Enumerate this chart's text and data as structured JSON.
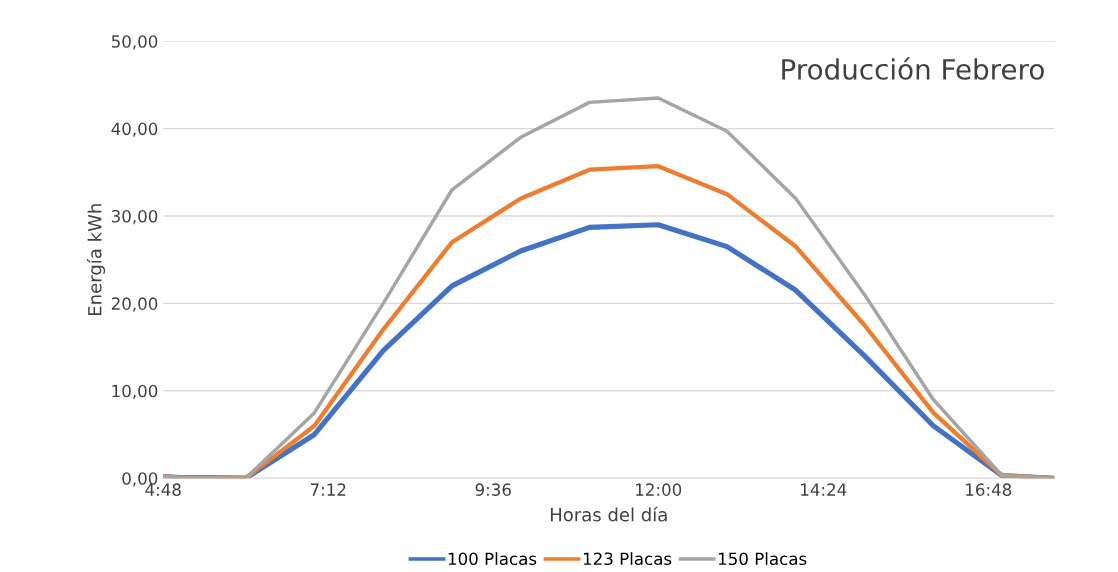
{
  "chart_data": {
    "type": "line",
    "title": "Producción Febrero",
    "xlabel": "Horas del día",
    "ylabel": "Energía kWh",
    "x": [
      4.8,
      5,
      6,
      7,
      8,
      9,
      10,
      11,
      12,
      13,
      14,
      15,
      16,
      17,
      17.76
    ],
    "series": [
      {
        "name": "100 Placas",
        "color": "#4472c4",
        "values": [
          0.2,
          0.1,
          0,
          5,
          14.6,
          22,
          26,
          28.7,
          29,
          26.5,
          21.5,
          14,
          6,
          0.3,
          0
        ]
      },
      {
        "name": "123 Placas",
        "color": "#ed7d31",
        "values": [
          0.2,
          0.1,
          0,
          6,
          17,
          27,
          32,
          35.3,
          35.7,
          32.5,
          26.5,
          17.5,
          7.5,
          0.3,
          0
        ]
      },
      {
        "name": "150 Placas",
        "color": "#a5a5a5",
        "values": [
          0.2,
          0.1,
          0,
          7.5,
          20,
          33,
          39,
          43,
          43.5,
          39.7,
          32,
          21,
          9,
          0.3,
          0
        ]
      }
    ],
    "xlim": [
      4.8,
      17.76
    ],
    "ylim": [
      0,
      50
    ],
    "xticks": [
      {
        "value": 4.8,
        "label": "4:48"
      },
      {
        "value": 7.2,
        "label": "7:12"
      },
      {
        "value": 9.6,
        "label": "9:36"
      },
      {
        "value": 12,
        "label": "12:00"
      },
      {
        "value": 14.4,
        "label": "14:24"
      },
      {
        "value": 16.8,
        "label": "16:48"
      }
    ],
    "yticks": [
      {
        "value": 0,
        "label": "0,00"
      },
      {
        "value": 10,
        "label": "10,00"
      },
      {
        "value": 20,
        "label": "20,00"
      },
      {
        "value": 30,
        "label": "30,00"
      },
      {
        "value": 40,
        "label": "40,00"
      },
      {
        "value": 50,
        "label": "50,00"
      }
    ],
    "grid": "y",
    "legend": "bottom",
    "marker": "none",
    "line_style": "solid"
  }
}
